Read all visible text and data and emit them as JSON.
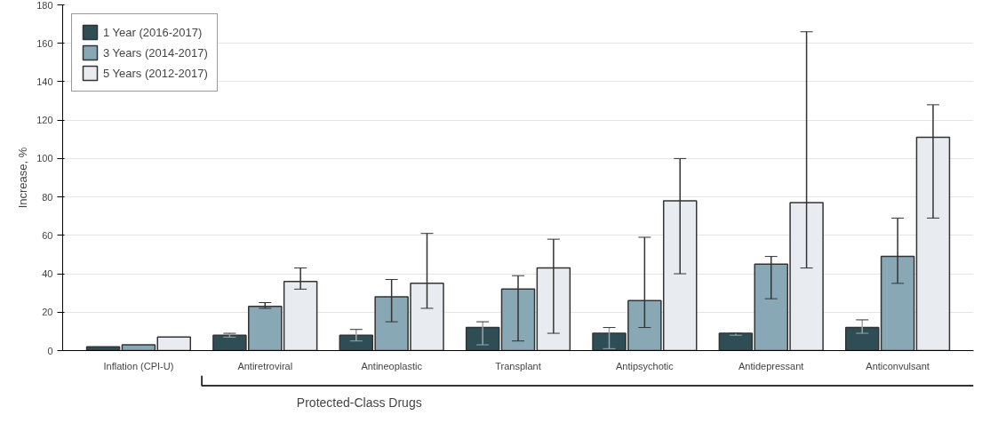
{
  "chart_data": {
    "type": "bar",
    "ylabel": "Increase, %",
    "categories": [
      "Inflation (CPI-U)",
      "Antiretroviral",
      "Antineoplastic",
      "Transplant",
      "Antipsychotic",
      "Antidepressant",
      "Anticonvulsant"
    ],
    "series": [
      {
        "name": "1 Year (2016-2017)",
        "color": "#2e4d55",
        "values": [
          2,
          8,
          8,
          12,
          9,
          9,
          12
        ],
        "errors": [
          null,
          [
            7,
            9
          ],
          [
            5,
            11
          ],
          [
            3,
            15
          ],
          [
            1,
            12
          ],
          [
            8,
            9
          ],
          [
            9,
            16
          ]
        ]
      },
      {
        "name": "3 Years (2014-2017)",
        "color": "#87a8b4",
        "values": [
          3,
          23,
          28,
          32,
          26,
          45,
          49
        ],
        "errors": [
          null,
          [
            22,
            25
          ],
          [
            15,
            37
          ],
          [
            5,
            39
          ],
          [
            12,
            59
          ],
          [
            27,
            49
          ],
          [
            35,
            69
          ]
        ]
      },
      {
        "name": "5 Years (2012-2017)",
        "color": "#e8ecf0",
        "values": [
          7,
          36,
          35,
          43,
          78,
          77,
          111
        ],
        "errors": [
          null,
          [
            32,
            43
          ],
          [
            22,
            61
          ],
          [
            9,
            58
          ],
          [
            40,
            100
          ],
          [
            43,
            166
          ],
          [
            69,
            128
          ]
        ]
      }
    ],
    "ylim": [
      0,
      180
    ],
    "yticks": [
      0,
      20,
      40,
      60,
      80,
      100,
      120,
      140,
      160,
      180
    ],
    "grid": "y",
    "legend": "top left",
    "annotations": [
      "Protected-Class Drugs"
    ]
  }
}
